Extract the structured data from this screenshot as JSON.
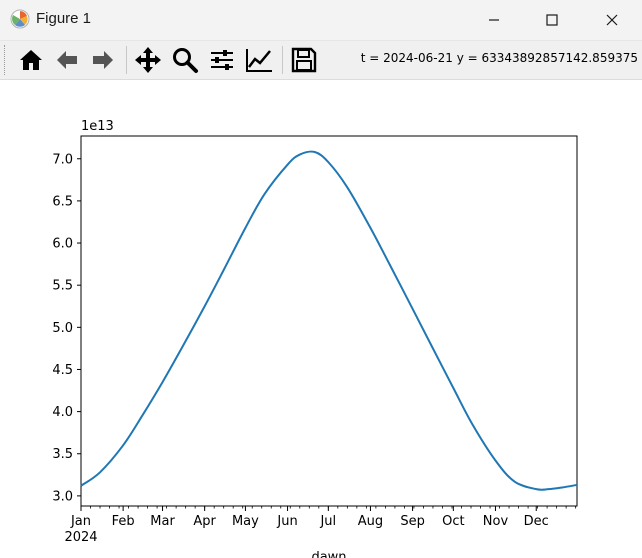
{
  "window": {
    "title": "Figure 1",
    "controls": [
      "minimize",
      "maximize",
      "close"
    ]
  },
  "toolbar": {
    "buttons": [
      {
        "name": "home",
        "icon": "home-icon"
      },
      {
        "name": "back",
        "icon": "arrow-left-icon"
      },
      {
        "name": "forward",
        "icon": "arrow-right-icon"
      },
      {
        "name": "pan",
        "icon": "move-icon"
      },
      {
        "name": "zoom",
        "icon": "magnifier-icon"
      },
      {
        "name": "subplots",
        "icon": "sliders-icon"
      },
      {
        "name": "customize",
        "icon": "line-chart-icon"
      },
      {
        "name": "save",
        "icon": "floppy-icon"
      }
    ],
    "coords_text": "t = 2024-06-21  y = 63343892857142.859375"
  },
  "chart_data": {
    "type": "line",
    "offset_label": "1e13",
    "xlabel": "dawn",
    "ylabel": "",
    "x_tick_labels": [
      "Jan",
      "Feb",
      "Mar",
      "Apr",
      "May",
      "Jun",
      "Jul",
      "Aug",
      "Sep",
      "Oct",
      "Nov",
      "Dec"
    ],
    "x_year_label": "2024",
    "x_range": [
      "2024-01-01",
      "2024-12-31"
    ],
    "y_tick_labels": [
      "3.0",
      "3.5",
      "4.0",
      "4.5",
      "5.0",
      "5.5",
      "6.0",
      "6.5",
      "7.0"
    ],
    "ylim": [
      2.88,
      7.27
    ],
    "y_unit_multiplier": 10000000000000.0,
    "color": "#1f77b4",
    "series": [
      {
        "x": [
          "2024-01-01",
          "2024-01-15",
          "2024-02-01",
          "2024-02-15",
          "2024-03-01",
          "2024-03-15",
          "2024-04-01",
          "2024-04-15",
          "2024-05-01",
          "2024-05-15",
          "2024-06-01",
          "2024-06-10",
          "2024-06-21",
          "2024-07-01",
          "2024-07-15",
          "2024-08-01",
          "2024-08-15",
          "2024-09-01",
          "2024-09-15",
          "2024-10-01",
          "2024-10-15",
          "2024-11-01",
          "2024-11-15",
          "2024-12-01",
          "2024-12-10",
          "2024-12-20",
          "2024-12-31"
        ],
        "values": [
          3.12,
          3.28,
          3.6,
          3.95,
          4.35,
          4.75,
          5.25,
          5.68,
          6.18,
          6.58,
          6.93,
          7.05,
          7.08,
          6.96,
          6.66,
          6.18,
          5.75,
          5.22,
          4.78,
          4.28,
          3.85,
          3.42,
          3.17,
          3.08,
          3.08,
          3.1,
          3.13
        ]
      }
    ]
  }
}
